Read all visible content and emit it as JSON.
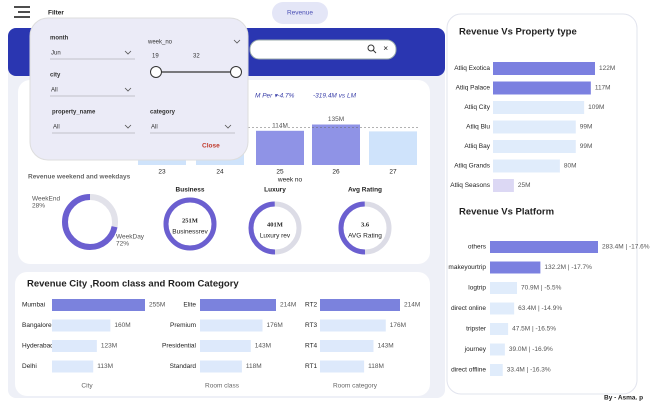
{
  "header": {
    "filter_label": "Filter",
    "tab": "Revenue"
  },
  "filter": {
    "month": {
      "label": "month",
      "value": "Jun"
    },
    "week_no": {
      "label": "week_no",
      "from": 19,
      "to": 32
    },
    "city": {
      "label": "city",
      "value": "All"
    },
    "property_name": {
      "label": "property_name",
      "value": "All"
    },
    "category": {
      "label": "category",
      "value": "All"
    },
    "close": "Close"
  },
  "week_chart": {
    "type": "bar",
    "kpi": [
      "M Per ▾-4.7%",
      "-319.4M vs LM"
    ],
    "x_label": "week no",
    "categories": [
      "23",
      "24",
      "25",
      "26",
      "27"
    ],
    "values": [
      128,
      140,
      114,
      135,
      112
    ],
    "value_labels": [
      null,
      null,
      "114M",
      "135M",
      null
    ],
    "colors": [
      "#cfe3fb",
      "#cfe3fb",
      "#8f93e6",
      "#8f93e6",
      "#cfe3fb"
    ]
  },
  "weekend_donut": {
    "type": "pie",
    "title": "Revenue weekend and weekdays",
    "categories": [
      "WeekEnd",
      "WeekDay"
    ],
    "values": [
      28,
      72
    ],
    "value_labels": [
      "28%",
      "72%"
    ],
    "colors": [
      "#e2e2ea",
      "#6b5fd0"
    ]
  },
  "gauges": [
    {
      "title": "Business",
      "value": "251M",
      "label": "Businessrev"
    },
    {
      "title": "Luxury",
      "value": "401M",
      "label": "Luxury rev"
    },
    {
      "title": "Avg Rating",
      "value": "3.6",
      "label": "AVG Rating"
    }
  ],
  "city_room": {
    "title": "Revenue City ,Room class and Room Category",
    "charts": [
      {
        "type": "bar",
        "x_label": "City",
        "categories": [
          "Mumbai",
          "Bangalore",
          "Hyderabad",
          "Delhi"
        ],
        "values": [
          255,
          160,
          123,
          113
        ],
        "value_labels": [
          "255M",
          "160M",
          "123M",
          "113M"
        ],
        "colors": [
          "#7b82dd",
          "#dde9fb",
          "#dde9fb",
          "#dde9fb"
        ]
      },
      {
        "type": "bar",
        "x_label": "Room class",
        "categories": [
          "Elite",
          "Premium",
          "Presidential",
          "Standard"
        ],
        "values": [
          214,
          176,
          143,
          118
        ],
        "value_labels": [
          "214M",
          "176M",
          "143M",
          "118M"
        ],
        "colors": [
          "#7b82dd",
          "#dde9fb",
          "#dde9fb",
          "#dde9fb"
        ]
      },
      {
        "type": "bar",
        "x_label": "Room category",
        "categories": [
          "RT2",
          "RT3",
          "RT4",
          "RT1"
        ],
        "values": [
          214,
          176,
          143,
          118
        ],
        "value_labels": [
          "214M",
          "176M",
          "143M",
          "118M"
        ],
        "colors": [
          "#7b82dd",
          "#dde9fb",
          "#dde9fb",
          "#dde9fb"
        ]
      }
    ]
  },
  "property": {
    "type": "bar",
    "title": "Revenue  Vs Property type",
    "categories": [
      "Atliq Exotica",
      "Atliq Palace",
      "Atliq City",
      "Atliq Blu",
      "Atliq Bay",
      "Atliq Grands",
      "Atliq Seasons"
    ],
    "values": [
      122,
      117,
      109,
      99,
      99,
      80,
      25
    ],
    "value_labels": [
      "122M",
      "117M",
      "109M",
      "99M",
      "99M",
      "80M",
      "25M"
    ],
    "colors": [
      "#7b80e0",
      "#7b80e0",
      "#e0ecfb",
      "#e0ecfb",
      "#e0ecfb",
      "#e0ecfb",
      "#dcd8f4"
    ]
  },
  "platform": {
    "type": "bar",
    "title": "Revenue Vs Platform",
    "categories": [
      "others",
      "makeyourtrip",
      "logtrip",
      "direct online",
      "tripster",
      "journey",
      "direct offline"
    ],
    "values": [
      283.4,
      132.2,
      70.9,
      63.4,
      47.5,
      39.0,
      33.4
    ],
    "value_labels": [
      "283.4M | -17.6%",
      "132.2M | -17.7%",
      "70.9M | -5.5%",
      "63.4M | -14.9%",
      "47.5M | -16.5%",
      "39.0M | -16.9%",
      "33.4M | -16.3%"
    ],
    "colors": [
      "#7b80e0",
      "#7b80e0",
      "#e0ecfb",
      "#e0ecfb",
      "#e0ecfb",
      "#e0ecfb",
      "#e0ecfb"
    ]
  },
  "footer": "By - Asma. p"
}
